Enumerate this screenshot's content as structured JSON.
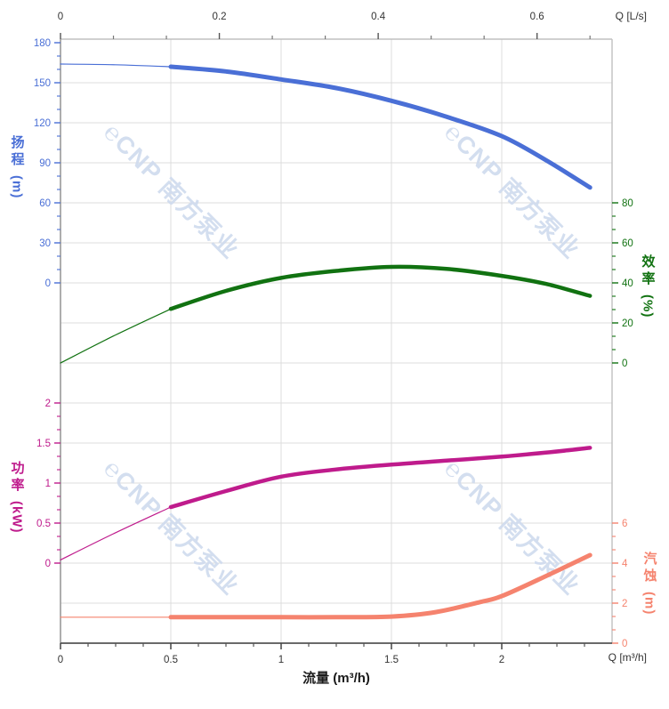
{
  "watermark": {
    "logo_glyph": "℮",
    "text": "CNP 南方泵业",
    "color": "#cfdbee"
  },
  "axes": {
    "top": {
      "label": "Q [L/s]",
      "color": "#333333",
      "tick_values": [
        0,
        0.2,
        0.4,
        0.6
      ],
      "tick_labels": [
        "0",
        "0.2",
        "0.4",
        "0.6"
      ]
    },
    "bottom": {
      "label": "Q [m³/h]",
      "title": "流量 (m³/h)",
      "color": "#333333",
      "tick_values": [
        0,
        0.5,
        1,
        1.5,
        2
      ],
      "tick_labels": [
        "0",
        "0.5",
        "1",
        "1.5",
        "2"
      ]
    },
    "head": {
      "title": "扬程",
      "unit": "(m)",
      "color": "#4a6fd6",
      "tick_values": [
        180,
        150,
        120,
        90,
        60,
        30,
        0
      ],
      "tick_labels": [
        "180",
        "150",
        "120",
        "90",
        "60",
        "30",
        "0"
      ],
      "range": [
        0,
        180
      ]
    },
    "efficiency": {
      "title": "效率",
      "unit": "(%)",
      "color": "#117211",
      "tick_values": [
        80,
        60,
        40,
        20,
        0
      ],
      "tick_labels": [
        "80",
        "60",
        "40",
        "20",
        "0"
      ],
      "range": [
        0,
        80
      ]
    },
    "power": {
      "title": "功率",
      "unit": "(kW)",
      "color": "#bf1b8c",
      "tick_values": [
        2,
        1.5,
        1,
        0.5,
        0
      ],
      "tick_labels": [
        "2",
        "1.5",
        "1",
        "0.5",
        "0"
      ],
      "range": [
        0,
        2
      ]
    },
    "npsh": {
      "title": "汽蚀",
      "unit": "(m)",
      "color": "#f5836e",
      "tick_values": [
        6,
        4,
        2,
        0
      ],
      "tick_labels": [
        "6",
        "4",
        "2",
        "0"
      ],
      "range": [
        0,
        6
      ]
    }
  },
  "chart_data": {
    "type": "line",
    "title": "",
    "xlabel": "流量 (m³/h)",
    "xlabel_secondary": "Q [L/s]",
    "x_range_m3h": [
      0,
      2.5
    ],
    "x_range_ls": [
      0,
      0.694
    ],
    "grid": true,
    "thin_line_below_q": 0.5,
    "series": [
      {
        "name": "扬程 Head",
        "axis": "head",
        "unit": "m",
        "color": "#4a6fd6",
        "width": 5,
        "points": [
          [
            0,
            164
          ],
          [
            0.25,
            163.5
          ],
          [
            0.5,
            162
          ],
          [
            0.75,
            158.5
          ],
          [
            1,
            152.5
          ],
          [
            1.25,
            146
          ],
          [
            1.5,
            136.5
          ],
          [
            1.75,
            124.5
          ],
          [
            2,
            110
          ],
          [
            2.2,
            92
          ],
          [
            2.4,
            71.5
          ]
        ]
      },
      {
        "name": "效率 Efficiency",
        "axis": "efficiency",
        "unit": "%",
        "color": "#117211",
        "width": 4.5,
        "points": [
          [
            0,
            0
          ],
          [
            0.25,
            14
          ],
          [
            0.5,
            27
          ],
          [
            0.75,
            36
          ],
          [
            1,
            42.5
          ],
          [
            1.25,
            46
          ],
          [
            1.5,
            48
          ],
          [
            1.75,
            47
          ],
          [
            2,
            43.5
          ],
          [
            2.2,
            39.5
          ],
          [
            2.4,
            33.5
          ]
        ]
      },
      {
        "name": "功率 Power",
        "axis": "power",
        "unit": "kW",
        "color": "#bf1b8c",
        "width": 4.5,
        "points": [
          [
            0,
            0.04
          ],
          [
            0.25,
            0.38
          ],
          [
            0.5,
            0.7
          ],
          [
            0.75,
            0.9
          ],
          [
            1,
            1.08
          ],
          [
            1.25,
            1.17
          ],
          [
            1.5,
            1.23
          ],
          [
            1.75,
            1.28
          ],
          [
            2,
            1.33
          ],
          [
            2.2,
            1.38
          ],
          [
            2.4,
            1.44
          ]
        ]
      },
      {
        "name": "汽蚀 NPSH",
        "axis": "npsh",
        "unit": "m",
        "color": "#f5836e",
        "width": 5,
        "points": [
          [
            0,
            1.3
          ],
          [
            0.25,
            1.3
          ],
          [
            0.5,
            1.3
          ],
          [
            0.75,
            1.3
          ],
          [
            1,
            1.3
          ],
          [
            1.25,
            1.3
          ],
          [
            1.5,
            1.33
          ],
          [
            1.7,
            1.55
          ],
          [
            1.9,
            2.05
          ],
          [
            2,
            2.35
          ],
          [
            2.2,
            3.35
          ],
          [
            2.4,
            4.4
          ]
        ]
      }
    ]
  }
}
